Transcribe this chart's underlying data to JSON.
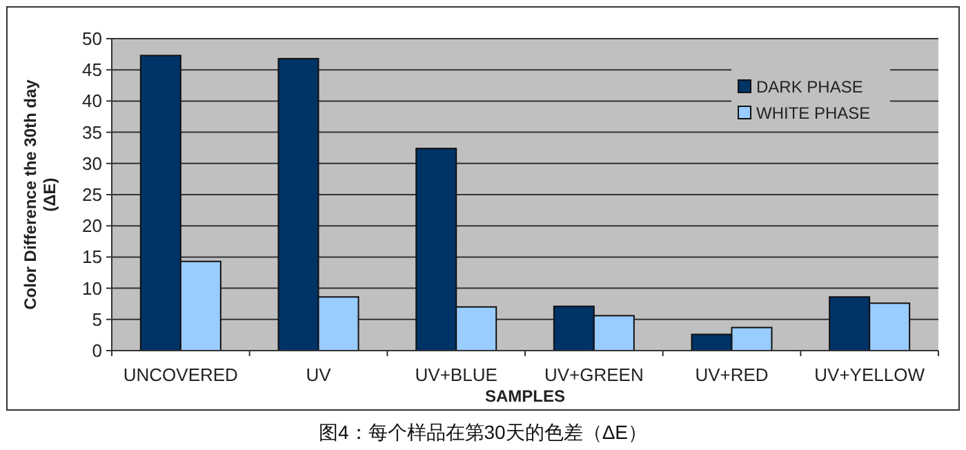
{
  "chart_data": {
    "type": "bar",
    "xlabel": "SAMPLES",
    "ylabel": "Color Difference the 30th day\n(ΔE)",
    "annotations": [
      "图4：每个样品在第30天的色差（ΔE）"
    ],
    "categories": [
      "UNCOVERED",
      "UV",
      "UV+BLUE",
      "UV+GREEN",
      "UV+RED",
      "UV+YELLOW"
    ],
    "series": [
      {
        "name": "DARK PHASE",
        "color": "#003366",
        "values": [
          47.3,
          46.8,
          32.4,
          7.1,
          2.6,
          8.6
        ]
      },
      {
        "name": "WHITE PHASE",
        "color": "#99ccff",
        "values": [
          14.3,
          8.6,
          7.0,
          5.6,
          3.7,
          7.6
        ]
      }
    ],
    "ylim": [
      0,
      50
    ],
    "yticks": [
      0,
      5,
      10,
      15,
      20,
      25,
      30,
      35,
      40,
      45,
      50
    ],
    "grid": "y",
    "legend": "top right"
  }
}
